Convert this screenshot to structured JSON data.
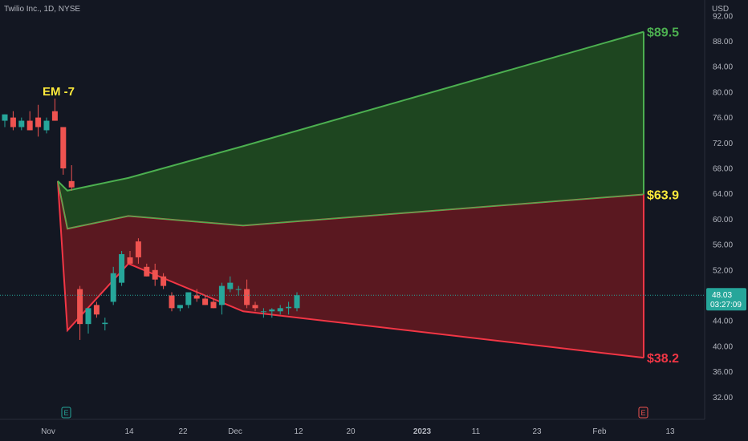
{
  "header": {
    "symbol_line": "Twilio Inc., 1D, NYSE",
    "currency": "USD"
  },
  "price_tag": {
    "price": "48.03",
    "countdown": "03:27:09"
  },
  "annotation": {
    "label": "EM -7"
  },
  "chart_data": {
    "type": "candlestick",
    "x_ticks": [
      "Nov",
      "14",
      "22",
      "Dec",
      "12",
      "20",
      "2023",
      "11",
      "23",
      "Feb",
      "13"
    ],
    "y_ticks": [
      "92.00",
      "88.00",
      "84.00",
      "80.00",
      "76.00",
      "72.00",
      "68.00",
      "64.00",
      "60.00",
      "56.00",
      "52.00",
      "48.00",
      "44.00",
      "40.00",
      "36.00",
      "32.00"
    ],
    "ylim": [
      28.5,
      94.5
    ],
    "grid": false,
    "candles": [
      {
        "o": 75.5,
        "h": 76.5,
        "l": 74.5,
        "c": 76.5
      },
      {
        "o": 76.0,
        "h": 77.0,
        "l": 74.0,
        "c": 74.5
      },
      {
        "o": 74.5,
        "h": 76.0,
        "l": 74.0,
        "c": 75.5
      },
      {
        "o": 75.5,
        "h": 77.0,
        "l": 74.0,
        "c": 74.0
      },
      {
        "o": 76.0,
        "h": 78.0,
        "l": 73.0,
        "c": 74.5
      },
      {
        "o": 74.0,
        "h": 76.0,
        "l": 73.5,
        "c": 75.5
      },
      {
        "o": 77.0,
        "h": 79.0,
        "l": 75.5,
        "c": 75.5
      },
      {
        "o": 74.5,
        "h": 74.5,
        "l": 67.0,
        "c": 68.0
      },
      {
        "o": 66.0,
        "h": 68.5,
        "l": 64.5,
        "c": 65.0
      },
      {
        "o": 49.0,
        "h": 49.5,
        "l": 41.0,
        "c": 43.5
      },
      {
        "o": 43.5,
        "h": 46.0,
        "l": 42.0,
        "c": 46.0
      },
      {
        "o": 46.5,
        "h": 47.0,
        "l": 44.5,
        "c": 45.0
      },
      {
        "o": 43.5,
        "h": 44.5,
        "l": 42.5,
        "c": 43.7
      },
      {
        "o": 47.0,
        "h": 52.5,
        "l": 46.5,
        "c": 51.5
      },
      {
        "o": 50.0,
        "h": 55.0,
        "l": 49.5,
        "c": 54.5
      },
      {
        "o": 54.0,
        "h": 55.0,
        "l": 53.5,
        "c": 53.0
      },
      {
        "o": 56.5,
        "h": 57.0,
        "l": 53.0,
        "c": 54.0
      },
      {
        "o": 52.5,
        "h": 53.0,
        "l": 51.0,
        "c": 51.0
      },
      {
        "o": 52.0,
        "h": 53.0,
        "l": 49.5,
        "c": 50.5
      },
      {
        "o": 51.0,
        "h": 51.5,
        "l": 49.0,
        "c": 49.5
      },
      {
        "o": 48.0,
        "h": 48.5,
        "l": 45.5,
        "c": 46.0
      },
      {
        "o": 46.0,
        "h": 46.5,
        "l": 45.5,
        "c": 46.5
      },
      {
        "o": 46.5,
        "h": 48.5,
        "l": 46.0,
        "c": 48.5
      },
      {
        "o": 48.0,
        "h": 49.0,
        "l": 47.0,
        "c": 47.5
      },
      {
        "o": 47.5,
        "h": 48.0,
        "l": 46.5,
        "c": 46.5
      },
      {
        "o": 47.0,
        "h": 47.5,
        "l": 46.0,
        "c": 46.0
      },
      {
        "o": 46.5,
        "h": 50.0,
        "l": 45.0,
        "c": 49.5
      },
      {
        "o": 49.0,
        "h": 51.0,
        "l": 48.5,
        "c": 50.0
      },
      {
        "o": 49.0,
        "h": 49.5,
        "l": 48.0,
        "c": 49.0
      },
      {
        "o": 49.0,
        "h": 50.5,
        "l": 46.0,
        "c": 46.5
      },
      {
        "o": 46.5,
        "h": 47.0,
        "l": 45.5,
        "c": 46.0
      },
      {
        "o": 45.5,
        "h": 46.0,
        "l": 44.5,
        "c": 45.5
      },
      {
        "o": 45.5,
        "h": 46.0,
        "l": 44.5,
        "c": 45.8
      },
      {
        "o": 45.5,
        "h": 46.5,
        "l": 45.0,
        "c": 46.0
      },
      {
        "o": 46.0,
        "h": 47.0,
        "l": 45.0,
        "c": 46.2
      },
      {
        "o": 46.0,
        "h": 48.5,
        "l": 45.5,
        "c": 48.03
      }
    ],
    "expected_move": {
      "start_price": 66.0,
      "upper_band": [
        66.0,
        64.5,
        66.5,
        71.5,
        89.5
      ],
      "middle_band": [
        66.0,
        58.5,
        60.5,
        59.0,
        63.9
      ],
      "lower_band": [
        66.0,
        42.5,
        53.0,
        45.5,
        38.2
      ],
      "end_labels": [
        "$89.5",
        "$63.9",
        "$38.2"
      ]
    },
    "last_price": 48.03,
    "colors": {
      "up": "#26a69a",
      "down": "#ef5350",
      "upper_zone": "#1e4620",
      "lower_zone": "#5a1820",
      "upper_line": "#4caf50",
      "lower_line": "#f23645",
      "label_upper": "#4caf50",
      "label_mid": "#ffeb3b",
      "label_lower": "#f23645",
      "annotation": "#ffeb3b"
    }
  },
  "markers": {
    "left": "E",
    "right": "E"
  }
}
